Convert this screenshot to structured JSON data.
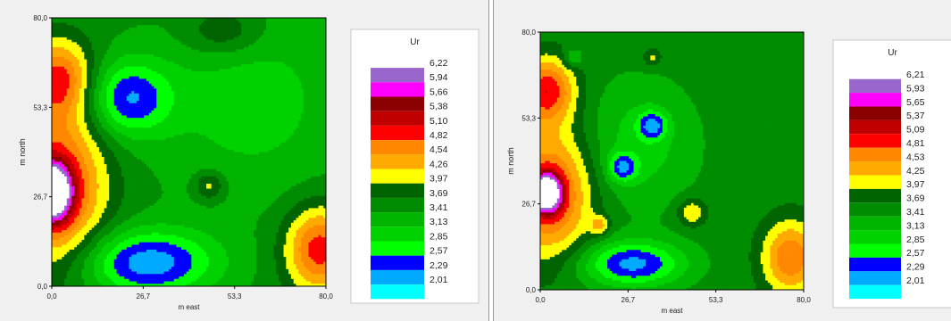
{
  "chart_data": [
    {
      "type": "heatmap",
      "title": "",
      "xlabel": "m east",
      "ylabel": "m north",
      "xlim": [
        0,
        80
      ],
      "ylim": [
        0,
        80
      ],
      "x_ticks": [
        "0,0",
        "26,7",
        "53,3",
        "80,0"
      ],
      "y_ticks": [
        "0,0",
        "26,7",
        "53,3",
        "80,0"
      ],
      "legend_title": "Ur",
      "legend_placement": "right",
      "levels": [
        "6,22",
        "5,94",
        "5,66",
        "5,38",
        "5,10",
        "4,82",
        "4,54",
        "4,26",
        "3,97",
        "3,69",
        "3,41",
        "3,13",
        "2,85",
        "2,57",
        "2,29",
        "2,01"
      ],
      "level_values": [
        6.22,
        5.94,
        5.66,
        5.38,
        5.1,
        4.82,
        4.54,
        4.26,
        3.97,
        3.69,
        3.41,
        3.13,
        2.85,
        2.57,
        2.29,
        2.01
      ],
      "colors": [
        "#ffffff",
        "#9966cc",
        "#ff00ff",
        "#8b0000",
        "#c00000",
        "#ff0000",
        "#ff8800",
        "#ffaa00",
        "#ffff00",
        "#006400",
        "#008c00",
        "#00b400",
        "#00d200",
        "#00ff00",
        "#0000ff",
        "#00aaff",
        "#00ffff"
      ],
      "field": {
        "base": 3.5,
        "features": [
          {
            "x": 0,
            "y": 28,
            "value": 6.3,
            "sx": 4,
            "sy": 6
          },
          {
            "x": 2,
            "y": 30,
            "value": 5.0,
            "sx": 10,
            "sy": 18
          },
          {
            "x": 2,
            "y": 62,
            "value": 4.8,
            "sx": 7,
            "sy": 8
          },
          {
            "x": 22,
            "y": 56,
            "value": 2.3,
            "sx": 9,
            "sy": 8
          },
          {
            "x": 28,
            "y": 7,
            "value": 2.1,
            "sx": 14,
            "sy": 7
          },
          {
            "x": 78,
            "y": 11,
            "value": 5.0,
            "sx": 7,
            "sy": 9
          },
          {
            "x": 50,
            "y": 76,
            "value": 4.1,
            "sx": 8,
            "sy": 5
          },
          {
            "x": 46,
            "y": 30,
            "value": 4.2,
            "sx": 3,
            "sy": 3
          },
          {
            "x": 58,
            "y": 55,
            "value": 3.0,
            "sx": 20,
            "sy": 20
          }
        ]
      }
    },
    {
      "type": "heatmap",
      "title": "",
      "xlabel": "m east",
      "ylabel": "m north",
      "xlim": [
        0,
        80
      ],
      "ylim": [
        0,
        80
      ],
      "x_ticks": [
        "0,0",
        "26,7",
        "53,3",
        "80,0"
      ],
      "y_ticks": [
        "0,0",
        "26,7",
        "53,3",
        "80,0"
      ],
      "legend_title": "Ur",
      "legend_placement": "right",
      "levels": [
        "6,21",
        "5,93",
        "5,65",
        "5,37",
        "5,09",
        "4,81",
        "4,53",
        "4,25",
        "3,97",
        "3,69",
        "3,41",
        "3,13",
        "2,85",
        "2,57",
        "2,29",
        "2,01"
      ],
      "level_values": [
        6.21,
        5.93,
        5.65,
        5.37,
        5.09,
        4.81,
        4.53,
        4.25,
        3.97,
        3.69,
        3.41,
        3.13,
        2.85,
        2.57,
        2.29,
        2.01
      ],
      "colors": [
        "#ffffff",
        "#9966cc",
        "#ff00ff",
        "#8b0000",
        "#c00000",
        "#ff0000",
        "#ff8800",
        "#ffaa00",
        "#ffff00",
        "#006400",
        "#008c00",
        "#00b400",
        "#00d200",
        "#00ff00",
        "#0000ff",
        "#00aaff",
        "#00ffff"
      ],
      "field": {
        "base": 3.55,
        "features": [
          {
            "x": 2,
            "y": 30,
            "value": 6.3,
            "sx": 3,
            "sy": 4
          },
          {
            "x": 3,
            "y": 30,
            "value": 5.0,
            "sx": 9,
            "sy": 14
          },
          {
            "x": 2,
            "y": 62,
            "value": 5.0,
            "sx": 6,
            "sy": 7
          },
          {
            "x": 28,
            "y": 8,
            "value": 2.2,
            "sx": 11,
            "sy": 5
          },
          {
            "x": 34,
            "y": 51,
            "value": 2.5,
            "sx": 3,
            "sy": 3
          },
          {
            "x": 25,
            "y": 38,
            "value": 2.5,
            "sx": 3,
            "sy": 3
          },
          {
            "x": 30,
            "y": 45,
            "value": 3.0,
            "sx": 12,
            "sy": 14
          },
          {
            "x": 76,
            "y": 10,
            "value": 4.8,
            "sx": 6,
            "sy": 8
          },
          {
            "x": 46,
            "y": 24,
            "value": 4.3,
            "sx": 3,
            "sy": 3
          },
          {
            "x": 18,
            "y": 20,
            "value": 4.3,
            "sx": 2,
            "sy": 2
          },
          {
            "x": 34,
            "y": 72,
            "value": 4.1,
            "sx": 2,
            "sy": 2
          },
          {
            "x": 10,
            "y": 72,
            "value": 3.0,
            "sx": 2,
            "sy": 2
          }
        ]
      }
    }
  ]
}
